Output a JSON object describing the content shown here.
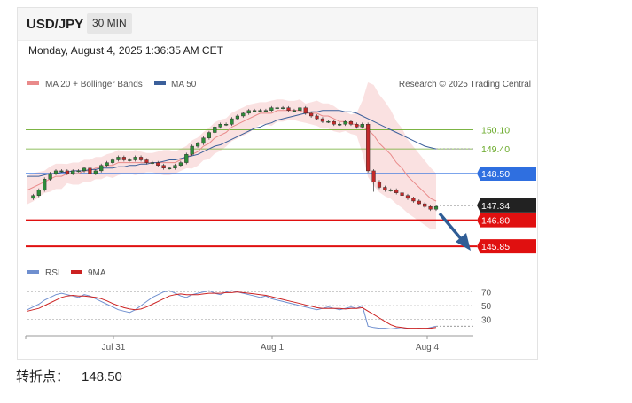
{
  "header": {
    "pair": "USD/JPY",
    "timeframe": "30 MIN"
  },
  "datetime": "Monday, August 4, 2025 1:36:35 AM CET",
  "watermark": "Research © 2025 Trading Central",
  "pivot": {
    "label": "转折点：",
    "value": "148.50"
  },
  "colors": {
    "ma20": "#e98a8a",
    "ma50": "#3b5f9a",
    "bands": "#f9dcdc",
    "resistance": "#6aaa2a",
    "pivot": "#2f6fe0",
    "support": "#e01010",
    "price": "#222222",
    "rsi": "#6f8fcf",
    "rsi_ma": "#cc2222",
    "arrow": "#2f5d96"
  },
  "chart_data": [
    {
      "type": "candlestick",
      "legend": [
        {
          "label": "MA 20 + Bollinger Bands",
          "color": "#e98a8a"
        },
        {
          "label": "MA 50",
          "color": "#3b5f9a"
        }
      ],
      "x_tick_labels": [
        "Jul 31",
        "Aug 1",
        "Aug 4"
      ],
      "ylim": [
        145.4,
        151.6
      ],
      "price_path": [
        147.6,
        147.7,
        147.9,
        148.3,
        148.5,
        148.6,
        148.6,
        148.5,
        148.6,
        148.6,
        148.7,
        148.5,
        148.6,
        148.8,
        148.9,
        149.0,
        149.1,
        149.0,
        149.0,
        149.1,
        149.0,
        148.9,
        148.9,
        148.8,
        148.7,
        148.7,
        148.8,
        148.9,
        149.2,
        149.5,
        149.6,
        149.8,
        150.0,
        150.2,
        150.3,
        150.3,
        150.5,
        150.6,
        150.7,
        150.8,
        150.8,
        150.8,
        150.8,
        150.9,
        150.9,
        150.9,
        150.8,
        150.8,
        150.9,
        150.7,
        150.6,
        150.5,
        150.4,
        150.4,
        150.3,
        150.3,
        150.4,
        150.3,
        150.2,
        150.3,
        148.6,
        148.2,
        148.0,
        147.9,
        147.9,
        147.8,
        147.7,
        147.6,
        147.5,
        147.4,
        147.3,
        147.2,
        147.3
      ],
      "ma20": [
        147.9,
        148.0,
        148.1,
        148.2,
        148.3,
        148.4,
        148.4,
        148.5,
        148.5,
        148.5,
        148.6,
        148.6,
        148.7,
        148.7,
        148.8,
        148.8,
        148.9,
        148.9,
        148.9,
        148.9,
        148.9,
        148.9,
        148.9,
        148.9,
        148.9,
        148.9,
        148.9,
        149.0,
        149.1,
        149.2,
        149.3,
        149.5,
        149.6,
        149.8,
        149.9,
        150.0,
        150.2,
        150.3,
        150.4,
        150.5,
        150.6,
        150.7,
        150.7,
        150.7,
        150.8,
        150.8,
        150.8,
        150.8,
        150.8,
        150.7,
        150.7,
        150.7,
        150.6,
        150.6,
        150.5,
        150.4,
        150.4,
        150.3,
        150.3,
        150.2,
        150.1,
        149.9,
        149.6,
        149.4,
        149.2,
        148.9,
        148.7,
        148.4,
        148.2,
        148.0,
        147.8,
        147.6,
        147.5
      ],
      "ma50": [
        148.4,
        148.4,
        148.4,
        148.45,
        148.5,
        148.5,
        148.55,
        148.55,
        148.6,
        148.6,
        148.6,
        148.65,
        148.65,
        148.7,
        148.7,
        148.7,
        148.75,
        148.75,
        148.8,
        148.8,
        148.85,
        148.85,
        148.9,
        148.9,
        148.95,
        149.0,
        149.0,
        149.05,
        149.1,
        149.15,
        149.2,
        149.3,
        149.4,
        149.5,
        149.55,
        149.65,
        149.75,
        149.85,
        149.95,
        150.05,
        150.15,
        150.2,
        150.3,
        150.35,
        150.45,
        150.5,
        150.55,
        150.6,
        150.65,
        150.7,
        150.75,
        150.75,
        150.8,
        150.8,
        150.8,
        150.8,
        150.75,
        150.75,
        150.7,
        150.6,
        150.5,
        150.4,
        150.3,
        150.2,
        150.1,
        150.0,
        149.9,
        149.8,
        149.7,
        149.6,
        149.5,
        149.45,
        149.4
      ],
      "levels": [
        {
          "label": "150.10",
          "value": 150.1,
          "kind": "resistance"
        },
        {
          "label": "149.40",
          "value": 149.4,
          "kind": "resistance"
        },
        {
          "label": "148.50",
          "value": 148.5,
          "kind": "pivot"
        },
        {
          "label": "147.34",
          "value": 147.34,
          "kind": "price"
        },
        {
          "label": "146.80",
          "value": 146.8,
          "kind": "support"
        },
        {
          "label": "145.85",
          "value": 145.85,
          "kind": "support"
        }
      ]
    },
    {
      "type": "line",
      "legend": [
        {
          "label": "RSI",
          "color": "#6f8fcf"
        },
        {
          "label": "9MA",
          "color": "#cc2222"
        }
      ],
      "ylim": [
        10,
        85
      ],
      "y_tick_labels": [
        "70",
        "50",
        "30"
      ],
      "y_ticks": [
        70,
        50,
        30
      ],
      "rsi": [
        44,
        48,
        52,
        58,
        62,
        66,
        68,
        66,
        64,
        62,
        66,
        64,
        60,
        56,
        52,
        48,
        44,
        42,
        40,
        44,
        50,
        56,
        62,
        66,
        70,
        72,
        68,
        64,
        62,
        66,
        68,
        70,
        72,
        68,
        66,
        70,
        72,
        70,
        68,
        66,
        64,
        62,
        64,
        60,
        58,
        56,
        54,
        52,
        50,
        48,
        46,
        44,
        46,
        48,
        46,
        44,
        46,
        48,
        46,
        50,
        20,
        18,
        17,
        17,
        16,
        17,
        16,
        17,
        16,
        17,
        16,
        18,
        20
      ],
      "ma9": [
        42,
        44,
        46,
        50,
        54,
        58,
        62,
        64,
        65,
        64,
        64,
        63,
        62,
        60,
        57,
        53,
        50,
        47,
        45,
        44,
        45,
        48,
        52,
        56,
        60,
        64,
        66,
        67,
        66,
        66,
        66,
        67,
        68,
        68,
        68,
        69,
        69,
        70,
        69,
        68,
        67,
        66,
        65,
        63,
        61,
        59,
        57,
        55,
        53,
        51,
        49,
        47,
        46,
        46,
        46,
        46,
        45,
        46,
        46,
        47,
        42,
        37,
        32,
        27,
        22,
        19,
        18,
        17,
        17,
        17,
        17,
        17,
        18
      ]
    }
  ]
}
